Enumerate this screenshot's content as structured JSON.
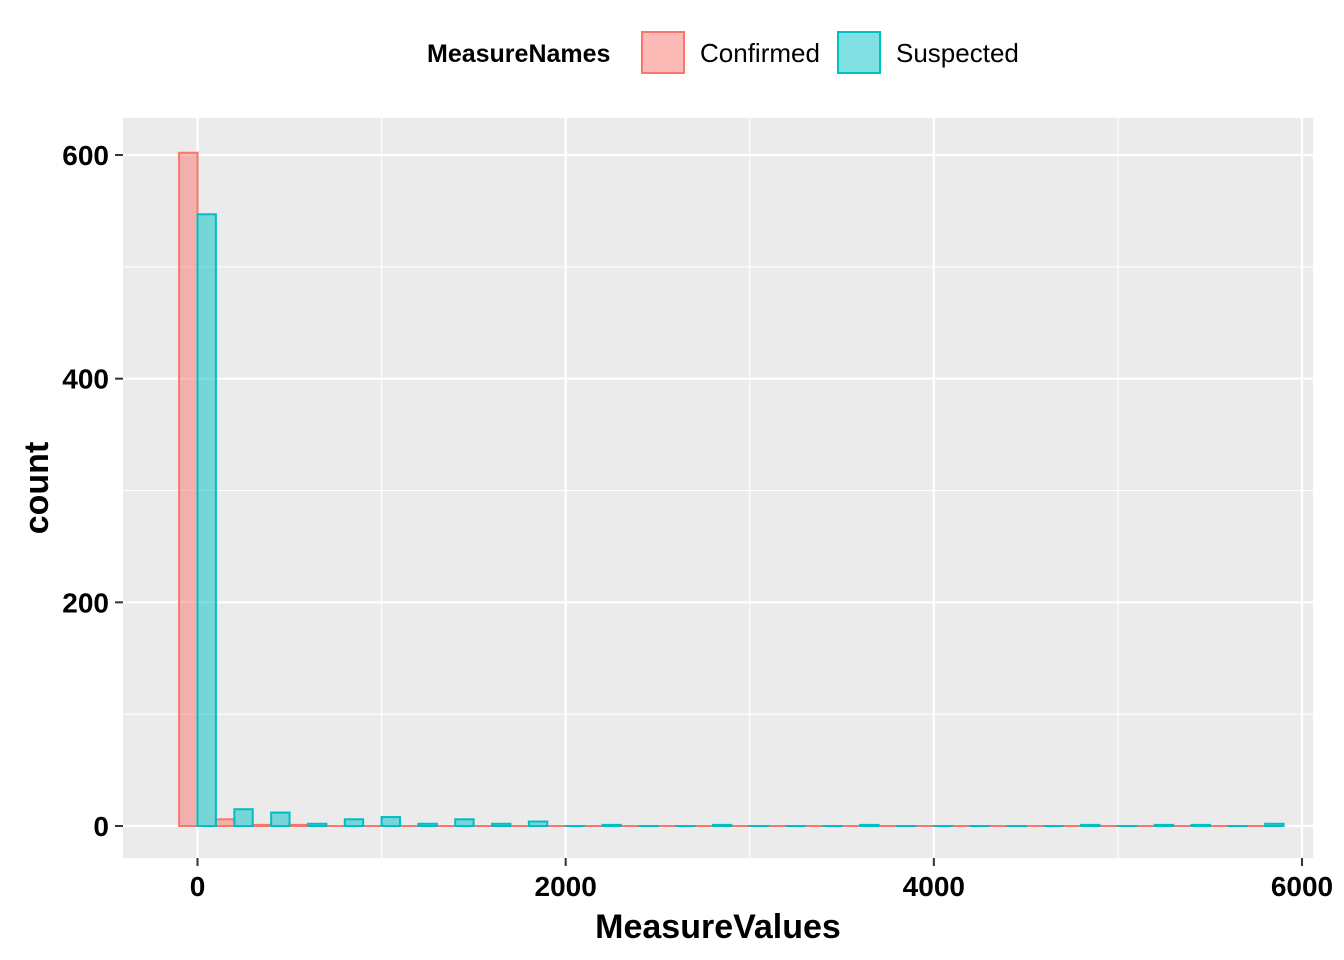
{
  "chart_data": {
    "type": "bar",
    "subtype": "dodged histogram",
    "title": "",
    "xlabel": "MeasureValues",
    "ylabel": "count",
    "xlim": [
      -400,
      6000
    ],
    "ylim": [
      -30,
      630
    ],
    "x_ticks": [
      0,
      2000,
      4000,
      6000
    ],
    "y_ticks": [
      0,
      200,
      400,
      600
    ],
    "grid": true,
    "bin_width": 200,
    "bin_start": -100,
    "legend": {
      "title": "MeasureNames",
      "position": "top",
      "entries": [
        "Confirmed",
        "Suspected"
      ]
    },
    "bin_centers": [
      0,
      200,
      400,
      600,
      800,
      1000,
      1200,
      1400,
      1600,
      1800,
      2000,
      2200,
      2400,
      2600,
      2800,
      3000,
      3200,
      3400,
      3600,
      3800,
      4000,
      4200,
      4400,
      4600,
      4800,
      5000,
      5200,
      5400,
      5600,
      5800
    ],
    "series": [
      {
        "name": "Confirmed",
        "fill": "#F8766D",
        "values": [
          602,
          6,
          1,
          1,
          0,
          0,
          0,
          0,
          0,
          0,
          0,
          0,
          0,
          0,
          0,
          0,
          0,
          0,
          0,
          0,
          0,
          0,
          0,
          0,
          0,
          0,
          0,
          0,
          0,
          0
        ]
      },
      {
        "name": "Suspected",
        "fill": "#00BFC4",
        "values": [
          547,
          15,
          12,
          2,
          6,
          8,
          2,
          6,
          2,
          4,
          0,
          1,
          0,
          0,
          1,
          0,
          0,
          0,
          1,
          0,
          0,
          0,
          0,
          0,
          1,
          0,
          1,
          1,
          0,
          2
        ]
      }
    ]
  }
}
